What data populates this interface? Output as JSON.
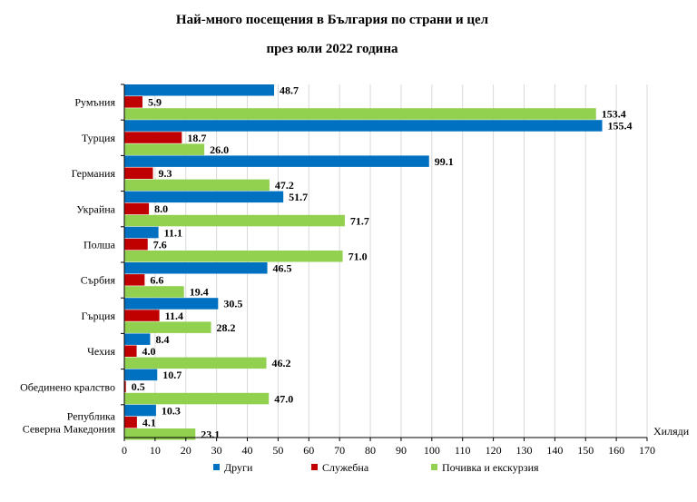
{
  "chart_data": {
    "type": "bar",
    "orientation": "horizontal",
    "title": "Най-много посещения в България по страни и цел",
    "subtitle": "през юли 2022 година",
    "categories": [
      "Румъния",
      "Турция",
      "Германия",
      "Украйна",
      "Полша",
      "Сърбия",
      "Гърция",
      "Чехия",
      "Обединено кралство",
      "Република Северна Македония"
    ],
    "category_lines": [
      [
        "Румъния"
      ],
      [
        "Турция"
      ],
      [
        "Германия"
      ],
      [
        "Украйна"
      ],
      [
        "Полша"
      ],
      [
        "Сърбия"
      ],
      [
        "Гърция"
      ],
      [
        "Чехия"
      ],
      [
        "Обединено кралство"
      ],
      [
        "Република",
        "Северна Македония"
      ]
    ],
    "series": [
      {
        "name": "Други",
        "color": "#0070C0",
        "values": [
          48.7,
          155.4,
          99.1,
          51.7,
          11.1,
          46.5,
          30.5,
          8.4,
          10.7,
          10.3
        ]
      },
      {
        "name": "Служебна",
        "color": "#C00000",
        "values": [
          5.9,
          18.7,
          9.3,
          8.0,
          7.6,
          6.6,
          11.4,
          4.0,
          0.5,
          4.1
        ]
      },
      {
        "name": "Почивка и екскурзия",
        "color": "#92D050",
        "values": [
          153.4,
          26.0,
          47.2,
          71.7,
          71.0,
          19.4,
          28.2,
          46.2,
          47.0,
          23.1
        ]
      }
    ],
    "xlim": [
      0,
      170
    ],
    "xticks": [
      0,
      10,
      20,
      30,
      40,
      50,
      60,
      70,
      80,
      90,
      100,
      110,
      120,
      130,
      140,
      150,
      160,
      170
    ],
    "xlabel": "Хиляди",
    "ylabel": "",
    "grid": "vertical",
    "legend_position": "bottom"
  }
}
